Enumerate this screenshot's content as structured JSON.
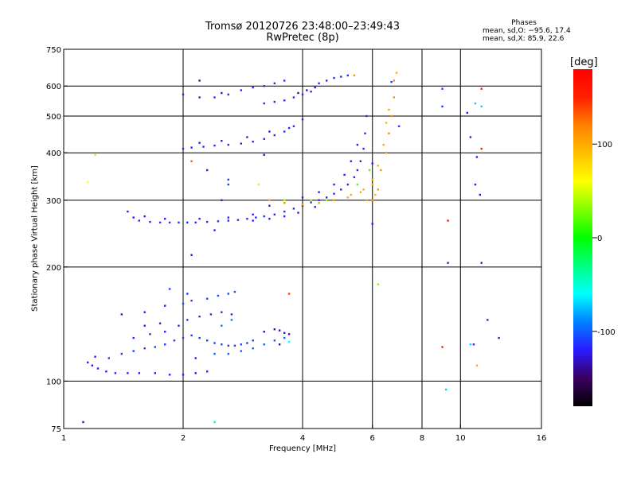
{
  "chart_data": {
    "type": "scatter",
    "title": "Tromsø 20120726 23:48:00–23:49:43",
    "subtitle": "RwPretec (8p)",
    "xlabel": "Frequency [MHz]",
    "ylabel": "Stationary phase Virtual Height [km]",
    "x_scale": "log",
    "y_scale": "log",
    "xlim": [
      1,
      16
    ],
    "ylim": [
      75,
      750
    ],
    "x_ticks": [
      1,
      2,
      4,
      6,
      8,
      10,
      16
    ],
    "x_tick_labels": [
      "1",
      "2",
      "4",
      "6",
      "8",
      "10",
      "16"
    ],
    "x_grid": [
      2,
      4,
      6,
      8,
      10
    ],
    "y_ticks": [
      75,
      100,
      200,
      300,
      400,
      500,
      600,
      750
    ],
    "y_tick_labels": [
      "75",
      "100",
      "200",
      "300",
      "400",
      "500",
      "600",
      "750"
    ],
    "y_grid": [
      100,
      200,
      300,
      400,
      500,
      600
    ],
    "grid": true,
    "colorbar": {
      "label": "[deg]",
      "range": [
        -180,
        180
      ],
      "ticks": [
        100,
        0,
        -100
      ],
      "tick_labels": [
        "100",
        "0",
        "-100"
      ],
      "colors": [
        "#000000",
        "#3a0060",
        "#2a1aff",
        "#0080ff",
        "#00ffff",
        "#00ff80",
        "#00ff00",
        "#80ff00",
        "#ffff00",
        "#ffc000",
        "#ff8000",
        "#ff2000",
        "#ff0000"
      ]
    },
    "phase_stats": {
      "title": "Phases",
      "row_o": "mean, sd,O: −95.6, 17.4",
      "row_x": "mean, sd,X:  85.9, 22.6"
    },
    "series": [
      {
        "points": [
          [
            1.15,
            112,
            -120
          ],
          [
            1.18,
            110,
            -120
          ],
          [
            1.22,
            108,
            -120
          ],
          [
            1.28,
            106,
            -120
          ],
          [
            1.35,
            105,
            -120
          ],
          [
            1.45,
            105,
            -120
          ],
          [
            1.55,
            105,
            -120
          ],
          [
            1.7,
            105,
            -120
          ],
          [
            1.85,
            104,
            -120
          ],
          [
            2.0,
            104,
            -120
          ],
          [
            2.15,
            105,
            -120
          ],
          [
            2.3,
            106,
            -120
          ],
          [
            1.3,
            115,
            -110
          ],
          [
            1.4,
            118,
            -110
          ],
          [
            1.5,
            120,
            -110
          ],
          [
            1.6,
            122,
            -110
          ],
          [
            1.7,
            123,
            -110
          ],
          [
            1.8,
            125,
            -110
          ],
          [
            1.9,
            128,
            -110
          ],
          [
            2.0,
            130,
            -110
          ],
          [
            2.1,
            132,
            -110
          ],
          [
            2.2,
            130,
            -110
          ],
          [
            2.3,
            128,
            -110
          ],
          [
            2.4,
            126,
            -110
          ],
          [
            2.5,
            125,
            -110
          ],
          [
            2.6,
            124,
            -110
          ],
          [
            2.7,
            124,
            -110
          ],
          [
            2.8,
            125,
            -110
          ],
          [
            2.9,
            126,
            -110
          ],
          [
            3.0,
            128,
            -110
          ],
          [
            1.5,
            130,
            -115
          ],
          [
            1.65,
            133,
            -115
          ],
          [
            1.8,
            135,
            -115
          ],
          [
            1.95,
            140,
            -115
          ],
          [
            2.05,
            145,
            -115
          ],
          [
            2.2,
            148,
            -115
          ],
          [
            2.35,
            150,
            -115
          ],
          [
            2.5,
            152,
            -115
          ],
          [
            2.65,
            150,
            -115
          ],
          [
            2.0,
            160,
            -105
          ],
          [
            2.1,
            163,
            -105
          ],
          [
            2.3,
            165,
            -105
          ],
          [
            2.45,
            168,
            -105
          ],
          [
            2.6,
            170,
            -105
          ],
          [
            2.7,
            172,
            -105
          ],
          [
            1.4,
            150,
            -120
          ],
          [
            1.6,
            152,
            -120
          ],
          [
            1.8,
            158,
            -120
          ],
          [
            1.85,
            175,
            -110
          ],
          [
            2.4,
            118,
            -100
          ],
          [
            2.6,
            118,
            -100
          ],
          [
            2.8,
            120,
            -100
          ],
          [
            3.0,
            122,
            -100
          ],
          [
            3.2,
            125,
            -100
          ],
          [
            3.4,
            128,
            -100
          ],
          [
            3.6,
            130,
            -100
          ],
          [
            3.2,
            135,
            -130
          ],
          [
            3.4,
            137,
            -130
          ],
          [
            3.5,
            136,
            -130
          ],
          [
            3.6,
            134,
            -130
          ],
          [
            3.7,
            133,
            -130
          ],
          [
            3.5,
            125,
            -140
          ],
          [
            3.7,
            127,
            -60
          ],
          [
            1.2,
            116,
            -120
          ],
          [
            1.6,
            140,
            -120
          ],
          [
            1.75,
            142,
            -120
          ],
          [
            2.05,
            170,
            -110
          ],
          [
            2.15,
            115,
            -120
          ],
          [
            2.5,
            140,
            -90
          ],
          [
            2.65,
            145,
            -90
          ],
          [
            1.55,
            265,
            -115
          ],
          [
            1.65,
            263,
            -115
          ],
          [
            1.75,
            262,
            -115
          ],
          [
            1.85,
            262,
            -115
          ],
          [
            1.95,
            262,
            -115
          ],
          [
            2.05,
            262,
            -115
          ],
          [
            2.15,
            262,
            -115
          ],
          [
            2.3,
            263,
            -115
          ],
          [
            2.45,
            264,
            -115
          ],
          [
            2.6,
            265,
            -115
          ],
          [
            2.75,
            266,
            -115
          ],
          [
            2.9,
            268,
            -115
          ],
          [
            3.05,
            270,
            -115
          ],
          [
            3.2,
            272,
            -115
          ],
          [
            3.4,
            275,
            -115
          ],
          [
            3.6,
            280,
            -115
          ],
          [
            3.8,
            285,
            -115
          ],
          [
            4.0,
            290,
            -115
          ],
          [
            4.2,
            296,
            -115
          ],
          [
            4.4,
            300,
            -115
          ],
          [
            4.6,
            305,
            -115
          ],
          [
            4.8,
            312,
            -115
          ],
          [
            5.0,
            320,
            -115
          ],
          [
            5.2,
            330,
            -115
          ],
          [
            5.4,
            345,
            -115
          ],
          [
            5.5,
            360,
            -115
          ],
          [
            5.6,
            380,
            -115
          ],
          [
            5.7,
            410,
            -115
          ],
          [
            5.75,
            450,
            -115
          ],
          [
            5.8,
            500,
            -115
          ],
          [
            1.45,
            280,
            -120
          ],
          [
            1.5,
            270,
            -120
          ],
          [
            1.6,
            272,
            -120
          ],
          [
            1.8,
            268,
            -120
          ],
          [
            2.2,
            268,
            -120
          ],
          [
            2.6,
            270,
            -120
          ],
          [
            3.0,
            275,
            -120
          ],
          [
            3.3,
            290,
            -120
          ],
          [
            3.6,
            295,
            -120
          ],
          [
            4.0,
            305,
            -120
          ],
          [
            4.4,
            315,
            -120
          ],
          [
            4.8,
            330,
            -120
          ],
          [
            5.1,
            350,
            -120
          ],
          [
            5.3,
            380,
            -120
          ],
          [
            5.5,
            420,
            -120
          ],
          [
            3.0,
            265,
            -120
          ],
          [
            3.3,
            268,
            -120
          ],
          [
            3.6,
            272,
            -120
          ],
          [
            3.9,
            278,
            -120
          ],
          [
            4.3,
            288,
            -120
          ],
          [
            2.0,
            410,
            -115
          ],
          [
            2.1,
            413,
            -115
          ],
          [
            2.25,
            415,
            -115
          ],
          [
            2.4,
            418,
            -115
          ],
          [
            2.6,
            420,
            -115
          ],
          [
            2.8,
            423,
            -115
          ],
          [
            3.0,
            428,
            -115
          ],
          [
            3.2,
            435,
            -115
          ],
          [
            3.4,
            445,
            -115
          ],
          [
            3.6,
            455,
            -115
          ],
          [
            3.8,
            470,
            -115
          ],
          [
            4.0,
            490,
            -115
          ],
          [
            2.2,
            425,
            -120
          ],
          [
            2.5,
            430,
            -120
          ],
          [
            2.9,
            440,
            -120
          ],
          [
            3.3,
            455,
            -120
          ],
          [
            3.7,
            465,
            -120
          ],
          [
            2.4,
            560,
            -115
          ],
          [
            2.6,
            570,
            -115
          ],
          [
            2.8,
            585,
            -115
          ],
          [
            3.0,
            595,
            -115
          ],
          [
            3.2,
            600,
            -115
          ],
          [
            3.4,
            610,
            -115
          ],
          [
            3.6,
            620,
            -115
          ],
          [
            3.2,
            540,
            -115
          ],
          [
            3.4,
            545,
            -115
          ],
          [
            3.6,
            550,
            -115
          ],
          [
            3.8,
            560,
            -115
          ],
          [
            4.0,
            570,
            -115
          ],
          [
            4.2,
            580,
            -115
          ],
          [
            4.4,
            610,
            -115
          ],
          [
            4.6,
            620,
            -115
          ],
          [
            4.8,
            630,
            -115
          ],
          [
            5.0,
            635,
            -115
          ],
          [
            5.2,
            640,
            -115
          ],
          [
            2.5,
            575,
            -130
          ],
          [
            3.9,
            575,
            -140
          ],
          [
            4.1,
            585,
            -130
          ],
          [
            4.3,
            595,
            -120
          ],
          [
            2.0,
            570,
            -120
          ],
          [
            2.2,
            560,
            -120
          ],
          [
            2.2,
            620,
            -140
          ],
          [
            2.1,
            380,
            130
          ],
          [
            2.3,
            360,
            -120
          ],
          [
            2.4,
            250,
            -120
          ],
          [
            2.5,
            300,
            -120
          ],
          [
            2.6,
            330,
            -110
          ],
          [
            3.2,
            395,
            -120
          ],
          [
            3.6,
            300,
            40
          ],
          [
            4.2,
            300,
            40
          ],
          [
            1.12,
            78,
            -130
          ],
          [
            1.2,
            395,
            40
          ],
          [
            1.15,
            335,
            60
          ],
          [
            2.1,
            215,
            -120
          ],
          [
            2.6,
            340,
            -110
          ],
          [
            3.1,
            330,
            70
          ]
        ]
      },
      {
        "points": [
          [
            3.3,
            300,
            100
          ],
          [
            3.6,
            295,
            110
          ],
          [
            4.0,
            292,
            115
          ],
          [
            4.4,
            295,
            110
          ],
          [
            4.8,
            300,
            105
          ],
          [
            5.2,
            305,
            100
          ],
          [
            5.6,
            315,
            100
          ],
          [
            6.0,
            330,
            105
          ],
          [
            6.3,
            360,
            110
          ],
          [
            6.5,
            400,
            110
          ],
          [
            6.6,
            450,
            115
          ],
          [
            6.7,
            500,
            115
          ],
          [
            6.8,
            560,
            110
          ],
          [
            6.8,
            620,
            120
          ],
          [
            5.3,
            310,
            100
          ],
          [
            5.7,
            320,
            95
          ],
          [
            6.0,
            340,
            100
          ],
          [
            6.2,
            370,
            95
          ],
          [
            6.4,
            420,
            100
          ],
          [
            6.5,
            480,
            95
          ],
          [
            6.6,
            520,
            100
          ],
          [
            5.4,
            640,
            115
          ],
          [
            6.9,
            650,
            100
          ],
          [
            6.0,
            300,
            110
          ],
          [
            6.2,
            320,
            105
          ],
          [
            5.8,
            300,
            105
          ],
          [
            6.1,
            310,
            90
          ],
          [
            5.5,
            330,
            20
          ],
          [
            5.9,
            360,
            20
          ],
          [
            4.6,
            300,
            30
          ]
        ]
      },
      {
        "points": [
          [
            7.0,
            470,
            -110
          ],
          [
            6.7,
            615,
            -110
          ],
          [
            6.0,
            260,
            -120
          ],
          [
            6.2,
            180,
            30
          ],
          [
            6.0,
            375,
            -120
          ],
          [
            9.0,
            530,
            -110
          ],
          [
            9.0,
            590,
            -110
          ],
          [
            9.3,
            265,
            150
          ],
          [
            9.3,
            205,
            -120
          ],
          [
            10.4,
            510,
            -120
          ],
          [
            10.6,
            440,
            -120
          ],
          [
            10.9,
            330,
            -120
          ],
          [
            11.3,
            590,
            150
          ],
          [
            11.3,
            410,
            150
          ],
          [
            11.2,
            310,
            -120
          ],
          [
            11.3,
            205,
            -120
          ],
          [
            11.0,
            110,
            100
          ],
          [
            10.8,
            125,
            -120
          ],
          [
            11.7,
            145,
            -120
          ],
          [
            12.5,
            130,
            -120
          ],
          [
            9.2,
            95,
            -70
          ],
          [
            9.0,
            123,
            150
          ],
          [
            10.6,
            125,
            -70
          ],
          [
            10.9,
            540,
            -70
          ],
          [
            11.3,
            530,
            -70
          ],
          [
            11.0,
            390,
            -120
          ],
          [
            3.7,
            170,
            140
          ],
          [
            2.4,
            78,
            -30
          ]
        ]
      }
    ]
  }
}
